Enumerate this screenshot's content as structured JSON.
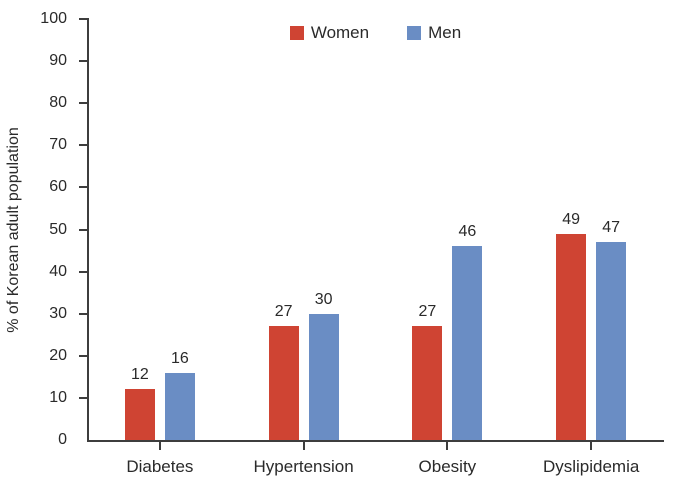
{
  "chart_data": {
    "type": "bar",
    "title": "",
    "categories": [
      "Diabetes",
      "Hypertension",
      "Obesity",
      "Dyslipidemia"
    ],
    "series": [
      {
        "name": "Women",
        "color": "#cf4433",
        "values": [
          12,
          27,
          27,
          49
        ]
      },
      {
        "name": "Men",
        "color": "#6a8dc4",
        "values": [
          16,
          30,
          46,
          47
        ]
      }
    ],
    "xlabel": "",
    "ylabel": "% of Korean adult population",
    "ylim": [
      0,
      100
    ],
    "yticks": [
      0,
      10,
      20,
      30,
      40,
      50,
      60,
      70,
      80,
      90,
      100
    ],
    "grid": false,
    "legend_position": "top-center",
    "bar_value_labels": true,
    "colors": {
      "women": "#cf4433",
      "men": "#6a8dc4",
      "axis": "#3d3d3d",
      "text": "#2a2a2a",
      "background": "#ffffff"
    }
  }
}
